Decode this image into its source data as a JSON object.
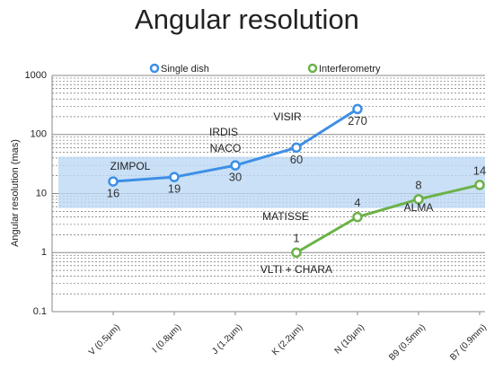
{
  "chart_data": {
    "type": "line",
    "title": "Angular resolution",
    "y_label": "Angular resolution (mas)",
    "categories": [
      "V (0.5µm)",
      "I (0.8µm)",
      "J (1.2µm)",
      "K (2.2µm)",
      "N (10µm)",
      "B9 (0.5mm)",
      "B7 (0.9mm)"
    ],
    "series": [
      {
        "name": "Single dish",
        "color": "#3d8fe6",
        "values": [
          16,
          19,
          30,
          60,
          270,
          null,
          null
        ]
      },
      {
        "name": "Interferometry",
        "color": "#6cb248",
        "values": [
          null,
          null,
          null,
          1,
          4,
          8,
          14
        ]
      }
    ],
    "annotations": [
      "ZIMPOL",
      "IRDIS",
      "NACO",
      "VISIR",
      "MATISSE",
      "ALMA",
      "VLTI + CHARA"
    ],
    "band": [
      5.7,
      42
    ],
    "band_color": "#bcd8f5",
    "ylim": [
      0.1,
      1000
    ],
    "yticks": [
      0.1,
      1,
      10,
      100,
      1000
    ],
    "log_y": true,
    "grid": true,
    "minor_grid": true
  }
}
